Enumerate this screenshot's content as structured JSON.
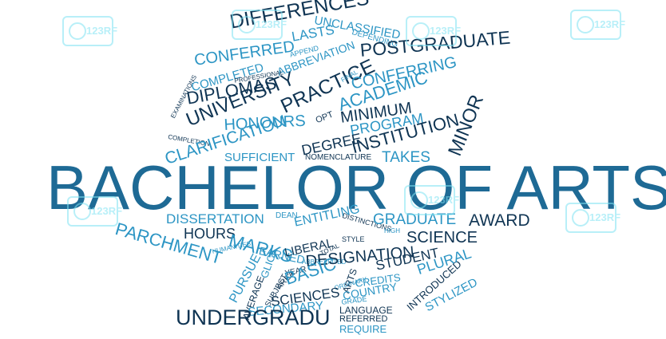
{
  "colors": {
    "dark": "#0f3453",
    "mid": "#1e6a95",
    "light": "#2c95c4",
    "watermark": "#7fe3f3"
  },
  "watermark_text": "123RF",
  "words": [
    {
      "id": "bachelor-of-arts",
      "text": "BACHELOR OF ARTS",
      "c": "mid"
    },
    {
      "id": "differences",
      "text": "DIFFERENCES",
      "c": "dark"
    },
    {
      "id": "unclassified",
      "text": "UNCLASSIFIED",
      "c": "light"
    },
    {
      "id": "depending",
      "text": "DEPENDING",
      "c": "light"
    },
    {
      "id": "lasts",
      "text": "LASTS",
      "c": "light"
    },
    {
      "id": "conferred",
      "text": "CONFERRED",
      "c": "light"
    },
    {
      "id": "append",
      "text": "APPEND",
      "c": "light"
    },
    {
      "id": "abbreviation",
      "text": "ABBREVIATION",
      "c": "light"
    },
    {
      "id": "postgraduate",
      "text": "POSTGRADUATE",
      "c": "dark"
    },
    {
      "id": "completed",
      "text": "COMPLETED",
      "c": "light"
    },
    {
      "id": "professional",
      "text": "PROFESSIONAL",
      "c": "dark"
    },
    {
      "id": "practice",
      "text": "PRACTICE",
      "c": "dark"
    },
    {
      "id": "diplomas",
      "text": "DIPLOMAS",
      "c": "dark"
    },
    {
      "id": "final",
      "text": "FINAL",
      "c": "light"
    },
    {
      "id": "conferring",
      "text": "CONFERRING",
      "c": "light"
    },
    {
      "id": "examinations",
      "text": "EXAMINATIONS",
      "c": "dark"
    },
    {
      "id": "university",
      "text": "UNIVERSITY",
      "c": "dark"
    },
    {
      "id": "academic",
      "text": "ACADEMIC",
      "c": "light"
    },
    {
      "id": "minor",
      "text": "MINOR",
      "c": "dark"
    },
    {
      "id": "minimum",
      "text": "MINIMUM",
      "c": "dark"
    },
    {
      "id": "honours",
      "text": "HONOURS",
      "c": "light"
    },
    {
      "id": "opt",
      "text": "OPT",
      "c": "dark"
    },
    {
      "id": "program",
      "text": "PROGRAM",
      "c": "light"
    },
    {
      "id": "completion",
      "text": "COMPLETION",
      "c": "dark"
    },
    {
      "id": "clarification",
      "text": "CLARIFICATION",
      "c": "light"
    },
    {
      "id": "degree",
      "text": "DEGREE",
      "c": "dark"
    },
    {
      "id": "institution",
      "text": "INSTITUTION",
      "c": "dark"
    },
    {
      "id": "sufficient",
      "text": "SUFFICIENT",
      "c": "light"
    },
    {
      "id": "nomenclature",
      "text": "NOMENCLATURE",
      "c": "dark"
    },
    {
      "id": "takes",
      "text": "TAKES",
      "c": "light"
    },
    {
      "id": "dissertation",
      "text": "DISSERTATION",
      "c": "light"
    },
    {
      "id": "dean",
      "text": "DEAN",
      "c": "light"
    },
    {
      "id": "entitling",
      "text": "ENTITLING",
      "c": "light"
    },
    {
      "id": "distinctions",
      "text": "DISTINCTIONS",
      "c": "dark"
    },
    {
      "id": "graduate",
      "text": "GRADUATE",
      "c": "light"
    },
    {
      "id": "award",
      "text": "AWARD",
      "c": "dark"
    },
    {
      "id": "parchment",
      "text": "PARCHMENT",
      "c": "light"
    },
    {
      "id": "hours",
      "text": "HOURS",
      "c": "dark"
    },
    {
      "id": "marks",
      "text": "MARKS",
      "c": "light"
    },
    {
      "id": "earned",
      "text": "EARNED",
      "c": "light"
    },
    {
      "id": "style",
      "text": "STYLE",
      "c": "dark"
    },
    {
      "id": "high",
      "text": "HIGH",
      "c": "light"
    },
    {
      "id": "science",
      "text": "SCIENCE",
      "c": "dark"
    },
    {
      "id": "liberal",
      "text": "LIBERAL",
      "c": "dark"
    },
    {
      "id": "total",
      "text": "TOTAL",
      "c": "dark"
    },
    {
      "id": "humanities",
      "text": "HUMANITIES",
      "c": "light"
    },
    {
      "id": "abbreviated",
      "text": "ABBREVIATED",
      "c": "light"
    },
    {
      "id": "designation",
      "text": "DESIGNATION",
      "c": "dark"
    },
    {
      "id": "student",
      "text": "STUDENT",
      "c": "dark"
    },
    {
      "id": "introduced",
      "text": "INTRODUCED",
      "c": "dark"
    },
    {
      "id": "pursue",
      "text": "PURSUE",
      "c": "light"
    },
    {
      "id": "glick",
      "text": "GLICK",
      "c": "light"
    },
    {
      "id": "year",
      "text": "YEAR",
      "c": "dark"
    },
    {
      "id": "arts",
      "text": "ARTS",
      "c": "dark"
    },
    {
      "id": "plural",
      "text": "PLURAL",
      "c": "light"
    },
    {
      "id": "stylized",
      "text": "STYLIZED",
      "c": "light"
    },
    {
      "id": "average",
      "text": "AVERAGE",
      "c": "dark"
    },
    {
      "id": "subject",
      "text": "SUBJECT",
      "c": "dark"
    },
    {
      "id": "area",
      "text": "AREA",
      "c": "dark"
    },
    {
      "id": "basic",
      "text": "BASIC",
      "c": "light"
    },
    {
      "id": "ordinary",
      "text": "ORDINARY",
      "c": "light"
    },
    {
      "id": "credits",
      "text": "CREDITS",
      "c": "light"
    },
    {
      "id": "sciences",
      "text": "SCIENCES",
      "c": "dark"
    },
    {
      "id": "country",
      "text": "COUNTRY",
      "c": "light"
    },
    {
      "id": "grade",
      "text": "GRADE",
      "c": "light"
    },
    {
      "id": "secondary",
      "text": "SECONDARY",
      "c": "light"
    },
    {
      "id": "language",
      "text": "LANGUAGE",
      "c": "dark"
    },
    {
      "id": "referred",
      "text": "REFERRED",
      "c": "dark"
    },
    {
      "id": "require",
      "text": "REQUIRE",
      "c": "light"
    },
    {
      "id": "undergraduate",
      "text": "UNDERGRADU",
      "c": "dark"
    }
  ]
}
